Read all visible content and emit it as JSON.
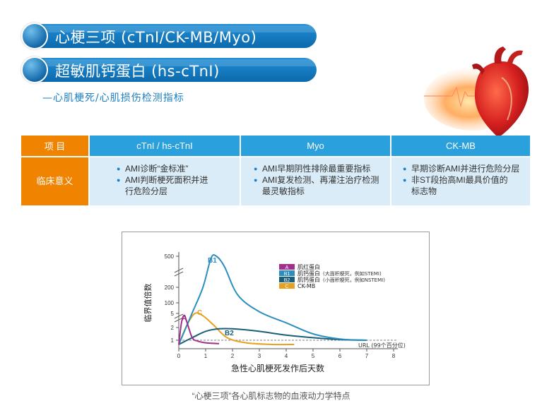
{
  "banners": [
    {
      "title": "心梗三项 (cTnI/CK-MB/Myo)"
    },
    {
      "title": "超敏肌钙蛋白 (hs-cTnI)"
    }
  ],
  "subtitle": "—心肌梗死/心肌损伤检测指标",
  "table": {
    "headers": [
      "项 目",
      "cTnI / hs-cTnI",
      "Myo",
      "CK-MB"
    ],
    "row_label": "临床意义",
    "cells": [
      [
        "AMI诊断“金标准”",
        "AMI判断梗死面积并进行危险分层"
      ],
      [
        "AMI早期阴性排除最重要指标",
        "AMI复发检测、再灌注治疗检测最灵敏指标"
      ],
      [
        "早期诊断AMI并进行危险分层",
        "非ST段抬高MI最具价值的标志物"
      ]
    ]
  },
  "colors": {
    "orange": "#f08300",
    "blue": "#2aa0dc",
    "cell_bg": "#d9ecf7"
  },
  "chart_data": {
    "type": "line",
    "xlabel": "急性心肌梗死发作后天数",
    "ylabel": "临界值倍数",
    "x_ticks": [
      "0",
      "1",
      "2",
      "3",
      "4",
      "5",
      "6",
      "7",
      "8"
    ],
    "y_ticks": [
      "1",
      "2",
      "5",
      "100",
      "200",
      "500"
    ],
    "url_label": "URL (99个百分位)",
    "series": [
      {
        "code": "A",
        "name": "肌红蛋白",
        "color": "#a0308c",
        "points": [
          [
            0,
            0.5
          ],
          [
            0.1,
            3
          ],
          [
            0.2,
            4.6
          ],
          [
            0.3,
            3.2
          ],
          [
            0.5,
            1.2
          ],
          [
            0.7,
            0.9
          ],
          [
            1.0,
            0.7
          ],
          [
            1.5,
            0.6
          ]
        ]
      },
      {
        "code": "B1",
        "name": "肌钙蛋白",
        "note": "(大面积梗死，例如STEMI)",
        "color": "#2a8fc0",
        "points": [
          [
            0,
            0.5
          ],
          [
            0.5,
            10
          ],
          [
            0.9,
            200
          ],
          [
            1.2,
            480
          ],
          [
            1.4,
            500
          ],
          [
            1.7,
            400
          ],
          [
            2.2,
            150
          ],
          [
            3,
            20
          ],
          [
            4,
            3
          ],
          [
            5,
            1.5
          ],
          [
            6,
            1.1
          ],
          [
            7,
            1.0
          ]
        ]
      },
      {
        "code": "B2",
        "name": "肌钙蛋白",
        "note": "(小面积梗死，例如NSTEMI)",
        "color": "#1b5e7a",
        "points": [
          [
            0,
            0.5
          ],
          [
            0.5,
            1.2
          ],
          [
            1,
            1.7
          ],
          [
            1.5,
            1.9
          ],
          [
            2,
            1.9
          ],
          [
            3,
            1.7
          ],
          [
            4,
            1.4
          ],
          [
            5,
            1.2
          ],
          [
            6,
            1.05
          ],
          [
            7,
            1.0
          ]
        ]
      },
      {
        "code": "C",
        "name": "CK-MB",
        "color": "#e8a020",
        "points": [
          [
            0,
            0.5
          ],
          [
            0.3,
            2.5
          ],
          [
            0.6,
            5
          ],
          [
            0.9,
            4.5
          ],
          [
            1.3,
            2.5
          ],
          [
            1.8,
            1.2
          ],
          [
            2.5,
            0.7
          ],
          [
            3.5,
            0.5
          ],
          [
            4.3,
            0.5
          ]
        ]
      }
    ],
    "annotation_labels": [
      "A",
      "C",
      "B1",
      "B2"
    ]
  },
  "caption": "“心梗三项”各心肌标志物的血液动力学特点"
}
